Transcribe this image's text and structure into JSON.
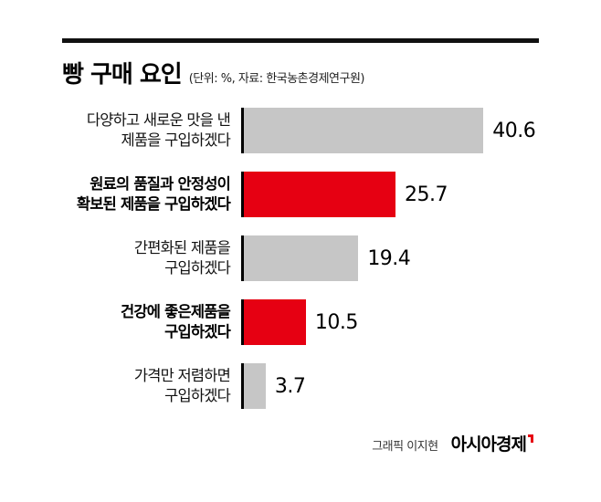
{
  "header": {
    "title": "빵 구매 요인",
    "subtitle": "(단위: %, 자료: 한국농촌경제연구원)"
  },
  "chart_data": {
    "type": "bar",
    "orientation": "horizontal",
    "title": "빵 구매 요인",
    "unit": "%",
    "source": "한국농촌경제연구원",
    "categories": [
      "다양하고 새로운 맛을 낸\n제품을 구입하겠다",
      "원료의 품질과 안정성이\n확보된 제품을 구입하겠다",
      "간편화된 제품을\n구입하겠다",
      "건강에 좋은제품을\n구입하겠다",
      "가격만 저렴하면\n구입하겠다"
    ],
    "values": [
      40.6,
      25.7,
      19.4,
      10.5,
      3.7
    ],
    "bar_colors": [
      "#c6c6c6",
      "#e60012",
      "#c6c6c6",
      "#e60012",
      "#c6c6c6"
    ],
    "emphasized": [
      false,
      true,
      false,
      true,
      false
    ],
    "xlim": [
      0,
      50
    ],
    "grid": false,
    "legend": false
  },
  "footer": {
    "credit": "그래픽 이지현",
    "brand": "아시아경제"
  },
  "colors": {
    "bar_gray": "#c6c6c6",
    "bar_red": "#e60012",
    "axis": "#000000",
    "top_rule": "#111111",
    "brand_mark_red": "#e60012"
  }
}
